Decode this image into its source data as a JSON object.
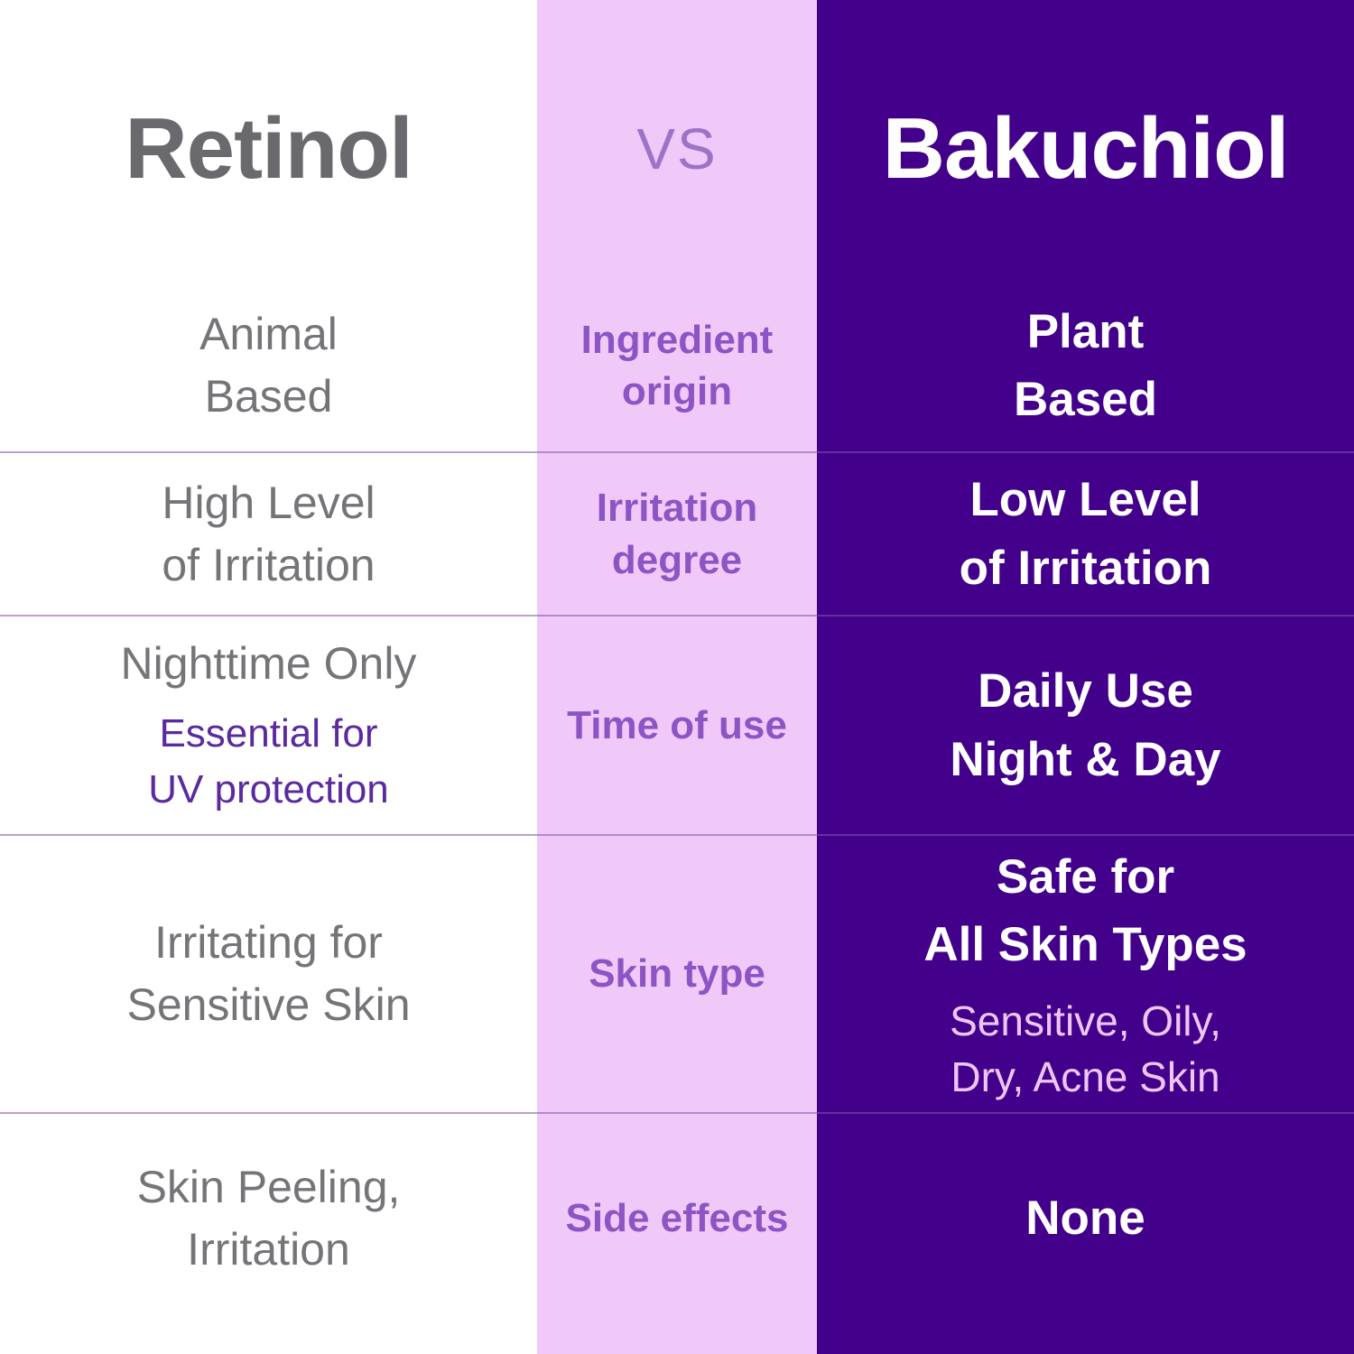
{
  "header": {
    "left_title": "Retinol",
    "vs_label": "VS",
    "right_title": "Bakuchiol"
  },
  "colors": {
    "left_column_bg": "#ffffff",
    "middle_column_bg": "#f0c9f9",
    "right_column_bg": "#43008a",
    "retinol_title": "#6a6a6e",
    "retinol_text": "#757579",
    "category_text": "#8d55c4",
    "vs_text": "#9d73c8",
    "bakuchiol_text": "#ffffff",
    "left_subtext": "#5b2a9e",
    "right_subtext": "#eec6f6",
    "divider": "rgba(128,88,170,0.55)"
  },
  "rows": [
    {
      "category": "Ingredient\norigin",
      "retinol": "Animal\nBased",
      "bakuchiol": "Plant\nBased"
    },
    {
      "category": "Irritation\ndegree",
      "retinol": "High Level\nof Irritation",
      "bakuchiol": "Low Level\nof Irritation"
    },
    {
      "category": "Time of use",
      "retinol_main": "Nighttime Only",
      "retinol_sub": "Essential for\nUV protection",
      "bakuchiol": "Daily Use\nNight & Day"
    },
    {
      "category": "Skin type",
      "retinol": "Irritating for\nSensitive Skin",
      "bakuchiol_main": "Safe for\nAll Skin Types",
      "bakuchiol_sub": "Sensitive, Oily,\nDry, Acne Skin"
    },
    {
      "category": "Side effects",
      "retinol": "Skin Peeling,\nIrritation",
      "bakuchiol": "None"
    }
  ]
}
